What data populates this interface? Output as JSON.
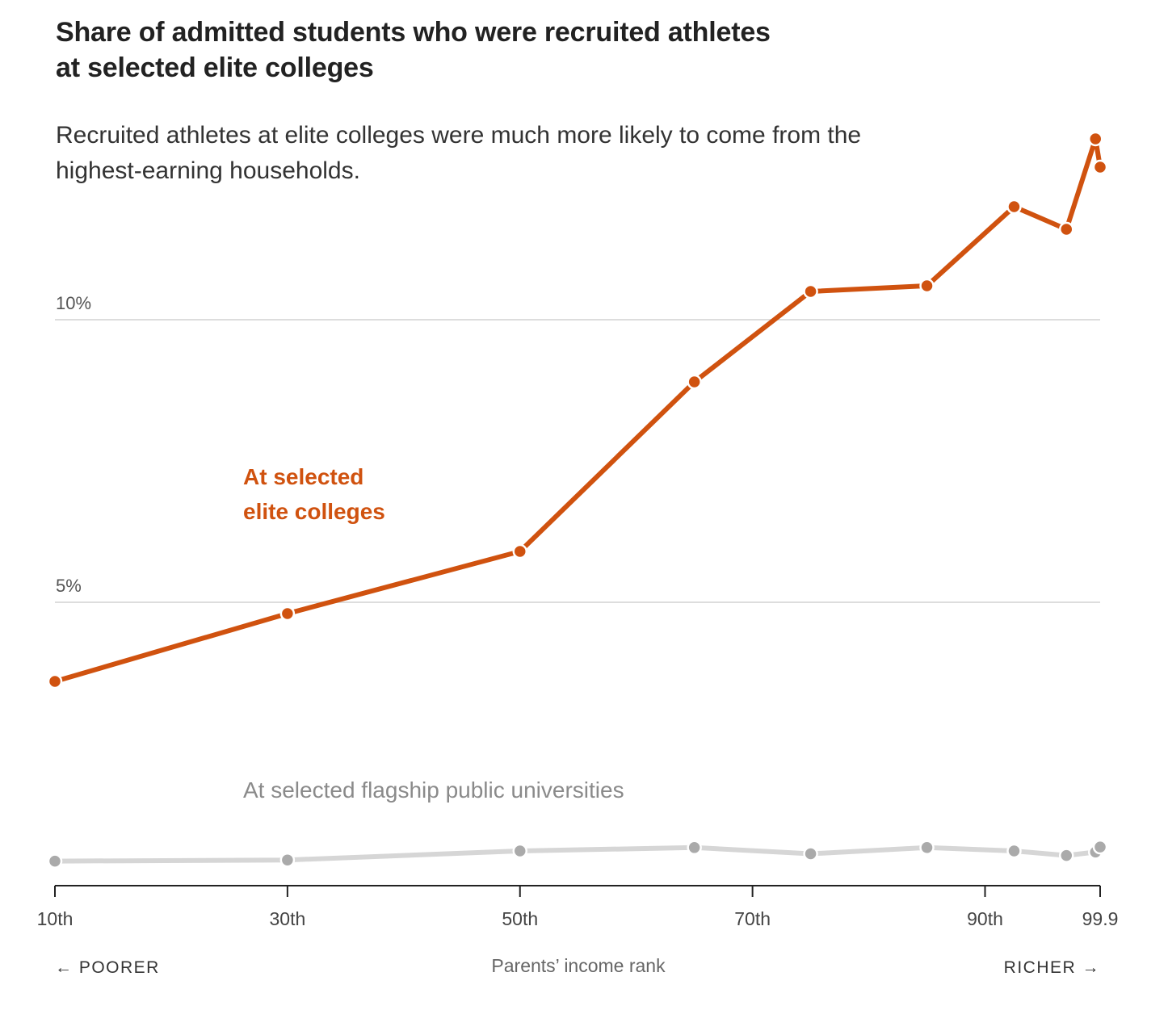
{
  "title": "Share of admitted students who were recruited athletes at selected elite colleges",
  "subtitle": "Recruited athletes at elite colleges were much more likely to come from the highest-earning households.",
  "colors": {
    "elite": "#d0520f",
    "flagship_line": "#d6d6d6",
    "flagship_point": "#aaaaaa",
    "grid": "#dddddd",
    "axis": "#222222"
  },
  "chart_data": {
    "type": "line",
    "x": [
      10,
      30,
      50,
      65,
      75,
      85,
      92.5,
      97,
      99.5,
      99.9
    ],
    "xlabel": "Parents’ income rank",
    "xlim": [
      10,
      99.9
    ],
    "x_ticks": [
      10,
      30,
      50,
      70,
      90,
      99.9
    ],
    "x_tick_labels": [
      "10th",
      "30th",
      "50th",
      "70th",
      "90th",
      "99.9"
    ],
    "ylim": [
      0,
      14
    ],
    "y_ticks": [
      5,
      10
    ],
    "y_tick_labels": [
      "5%",
      "10%"
    ],
    "grid": true,
    "series": [
      {
        "name": "At selected elite colleges",
        "label_lines": [
          "At selected",
          "elite colleges"
        ],
        "values": [
          3.6,
          4.8,
          5.9,
          8.9,
          10.5,
          10.6,
          12.0,
          11.6,
          13.2,
          12.7
        ]
      },
      {
        "name": "At selected flagship public universities",
        "label_lines": [
          "At selected flagship public universities"
        ],
        "values": [
          0.42,
          0.44,
          0.6,
          0.66,
          0.55,
          0.66,
          0.6,
          0.52,
          0.58,
          0.67
        ]
      }
    ],
    "direction_labels": {
      "left": "← POORER",
      "right": "RICHER →"
    }
  }
}
